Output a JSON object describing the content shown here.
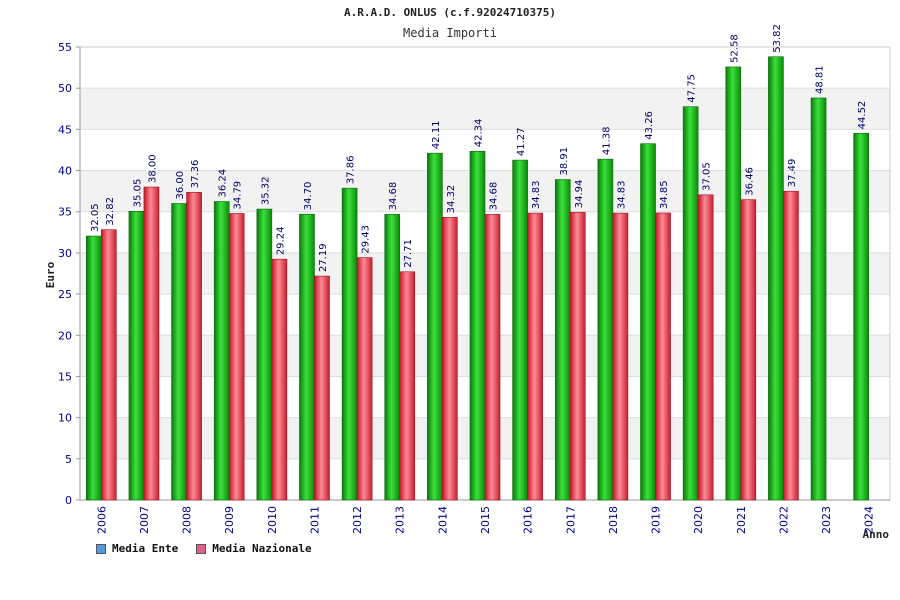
{
  "chart_data": {
    "type": "bar",
    "title": "A.R.A.D. ONLUS (c.f.92024710375)",
    "subtitle": "Media Importi",
    "ylabel": "Euro",
    "xlabel": "Anno",
    "ylim": [
      0,
      55
    ],
    "yticks": [
      0,
      5,
      10,
      15,
      20,
      25,
      30,
      35,
      40,
      45,
      50,
      55
    ],
    "categories": [
      "2006",
      "2007",
      "2008",
      "2009",
      "2010",
      "2011",
      "2012",
      "2013",
      "2014",
      "2015",
      "2016",
      "2017",
      "2018",
      "2019",
      "2020",
      "2021",
      "2022",
      "2023",
      "2024"
    ],
    "series": [
      {
        "name": "Media Ente",
        "color": "#16b016",
        "legend_color": "#5599dd",
        "values": [
          32.05,
          35.05,
          36.0,
          36.24,
          35.32,
          34.7,
          37.86,
          34.68,
          42.11,
          42.34,
          41.27,
          38.91,
          41.38,
          43.26,
          47.75,
          52.58,
          53.82,
          48.81,
          44.52
        ],
        "labels": [
          "32.05",
          "35.05",
          "36.00",
          "36.24",
          "35.32",
          "34.70",
          "37.86",
          "34.68",
          "42.11",
          "42.34",
          "41.27",
          "38.91",
          "41.38",
          "43.26",
          "47.75",
          "52.58",
          "53.82",
          "48.81",
          "44.52"
        ]
      },
      {
        "name": "Media Nazionale",
        "color": "#e03848",
        "legend_color": "#e06088",
        "values": [
          32.82,
          38.0,
          37.36,
          34.79,
          29.24,
          27.19,
          29.43,
          27.71,
          34.32,
          34.68,
          34.83,
          34.94,
          34.83,
          34.85,
          37.05,
          36.46,
          37.49,
          null,
          null
        ],
        "labels": [
          "32.82",
          "38.00",
          "37.36",
          "34.79",
          "29.24",
          "27.19",
          "29.43",
          "27.71",
          "34.32",
          "34.68",
          "34.83",
          "34.94",
          "34.83",
          "34.85",
          "37.05",
          "36.46",
          "37.49",
          null,
          null
        ]
      }
    ],
    "grid": true,
    "legend": "bottom-left"
  }
}
